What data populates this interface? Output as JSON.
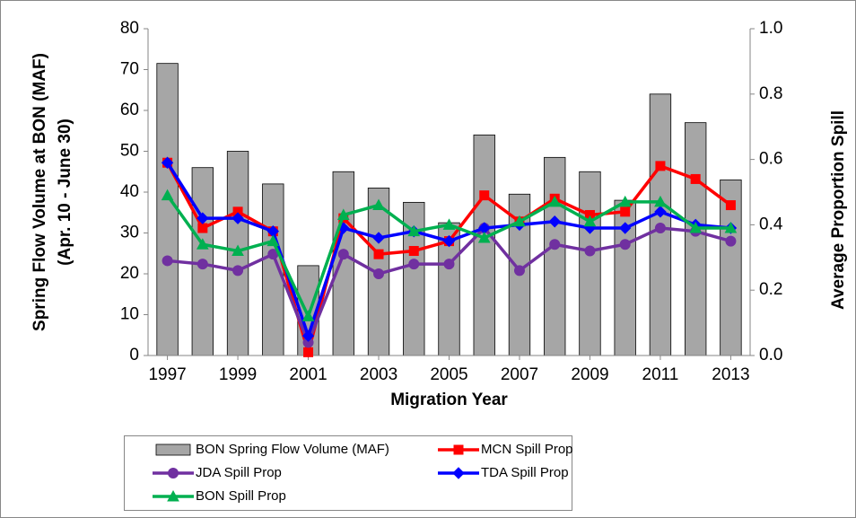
{
  "chart_data": {
    "type": "bar-line",
    "xlabel": "Migration Year",
    "ylabel": [
      "Spring Flow Volume at BON (MAF)",
      "(Apr. 10 - June 30)"
    ],
    "y2label": "Average Proportion Spill",
    "x": [
      1997,
      1998,
      1999,
      2000,
      2001,
      2002,
      2003,
      2004,
      2005,
      2006,
      2007,
      2008,
      2009,
      2010,
      2011,
      2012,
      2013
    ],
    "xlim": [
      1996.45,
      2013.55
    ],
    "xticks": [
      1997,
      1999,
      2001,
      2003,
      2005,
      2007,
      2009,
      2011,
      2013
    ],
    "ylim": [
      0,
      80
    ],
    "yticks": [
      0,
      10,
      20,
      30,
      40,
      50,
      60,
      70,
      80
    ],
    "y2lim": [
      0,
      1
    ],
    "y2ticks": [
      {
        "value": 0,
        "label": "0.0"
      },
      0.2,
      0.4,
      0.6,
      0.8,
      {
        "value": 1,
        "label": "1.0"
      }
    ],
    "series": [
      {
        "name": "BON Spring Flow Volume (MAF)",
        "type": "bar",
        "color": "#a6a6a6",
        "values": [
          71.5,
          46,
          50,
          42,
          22,
          45,
          41,
          37.5,
          32.5,
          54,
          39.5,
          48.5,
          45,
          38,
          64,
          57,
          43
        ]
      },
      {
        "name": "MCN Spill Prop",
        "type": "line",
        "axis": "y2",
        "color": "#ff0000",
        "marker": "square",
        "values": [
          0.59,
          0.39,
          0.44,
          0.38,
          0.01,
          0.42,
          0.31,
          0.32,
          0.35,
          0.49,
          0.41,
          0.48,
          0.43,
          0.44,
          0.58,
          0.54,
          0.46
        ]
      },
      {
        "name": "JDA Spill Prop",
        "type": "line",
        "axis": "y2",
        "color": "#7030a0",
        "marker": "circle",
        "values": [
          0.29,
          0.28,
          0.26,
          0.31,
          0.04,
          0.31,
          0.25,
          0.28,
          0.28,
          0.39,
          0.26,
          0.34,
          0.32,
          0.34,
          0.39,
          0.38,
          0.35
        ]
      },
      {
        "name": "TDA Spill Prop",
        "type": "line",
        "axis": "y2",
        "color": "#0000ff",
        "marker": "diamond",
        "values": [
          0.59,
          0.42,
          0.42,
          0.38,
          0.06,
          0.39,
          0.36,
          0.38,
          0.35,
          0.39,
          0.4,
          0.41,
          0.39,
          0.39,
          0.44,
          0.4,
          0.39
        ]
      },
      {
        "name": "BON Spill Prop",
        "type": "line",
        "axis": "y2",
        "color": "#00b050",
        "marker": "triangle",
        "values": [
          0.49,
          0.34,
          0.32,
          0.35,
          0.12,
          0.43,
          0.46,
          0.38,
          0.4,
          0.36,
          0.41,
          0.47,
          0.41,
          0.47,
          0.47,
          0.39,
          0.39
        ]
      }
    ]
  }
}
